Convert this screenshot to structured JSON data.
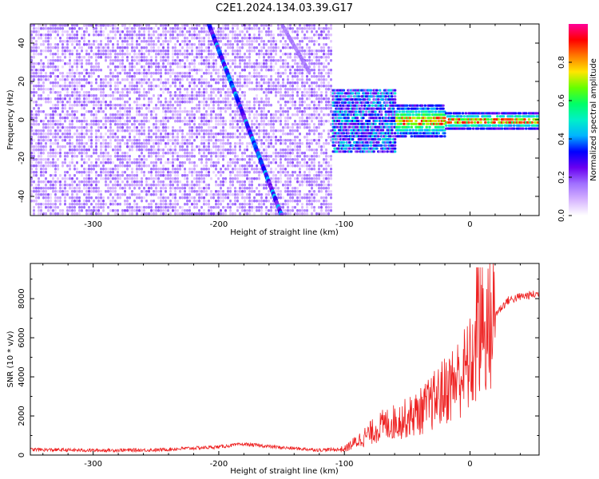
{
  "chart_data": [
    {
      "type": "heatmap",
      "title": "C2E1.2024.134.03.39.G17",
      "xlabel": "Height of straight line (km)",
      "ylabel": "Frequency (Hz)",
      "xlim": [
        -350,
        55
      ],
      "ylim": [
        -50,
        50
      ],
      "x_ticks": [
        -300,
        -200,
        -100,
        0
      ],
      "y_ticks": [
        -40,
        -20,
        0,
        20,
        40
      ],
      "colorbar": {
        "label": "Normalized spectral amplitude",
        "range": [
          0.0,
          1.0
        ],
        "ticks": [
          0.0,
          0.2,
          0.4,
          0.6,
          0.8
        ],
        "tick_labels": [
          "0.0",
          "0.2",
          "0.4",
          "0.6",
          "0.8"
        ],
        "colors": [
          "#ffffff",
          "#d6b3ff",
          "#a070ff",
          "#6a00f0",
          "#0000ff",
          "#00b4ff",
          "#00f0c8",
          "#00ff66",
          "#66ff00",
          "#ffe600",
          "#ff7a00",
          "#ff0000",
          "#ff0099"
        ]
      },
      "features": {
        "noise_region_km": [
          -350,
          -110
        ],
        "diagonal_trace": {
          "start": [
            -208,
            50
          ],
          "end": [
            -150,
            -50
          ]
        },
        "secondary_trace": {
          "start": [
            -150,
            50
          ],
          "end": [
            -128,
            25
          ]
        },
        "signal_band": {
          "start_km": -110,
          "end_km": 55,
          "center_hz": 0,
          "peak_color": "#ff0000"
        }
      }
    },
    {
      "type": "line",
      "xlabel": "Height of straight line (km)",
      "ylabel": "SNR (10 * v/v)",
      "xlim": [
        -350,
        55
      ],
      "ylim": [
        0,
        9800
      ],
      "x_ticks": [
        -300,
        -200,
        -100,
        0
      ],
      "y_ticks": [
        0,
        2000,
        4000,
        6000,
        8000
      ],
      "line_color": "#ee2222",
      "series": [
        {
          "name": "SNR",
          "x": [
            -350,
            -300,
            -250,
            -200,
            -180,
            -150,
            -120,
            -100,
            -90,
            -80,
            -70,
            -60,
            -50,
            -40,
            -30,
            -20,
            -10,
            0,
            10,
            20,
            30,
            40,
            50,
            55
          ],
          "values": [
            280,
            240,
            260,
            420,
            560,
            380,
            260,
            300,
            700,
            1100,
            1500,
            1700,
            1900,
            2200,
            2700,
            3300,
            3900,
            4600,
            5800,
            7200,
            7900,
            8100,
            8200,
            8250
          ]
        }
      ]
    }
  ]
}
